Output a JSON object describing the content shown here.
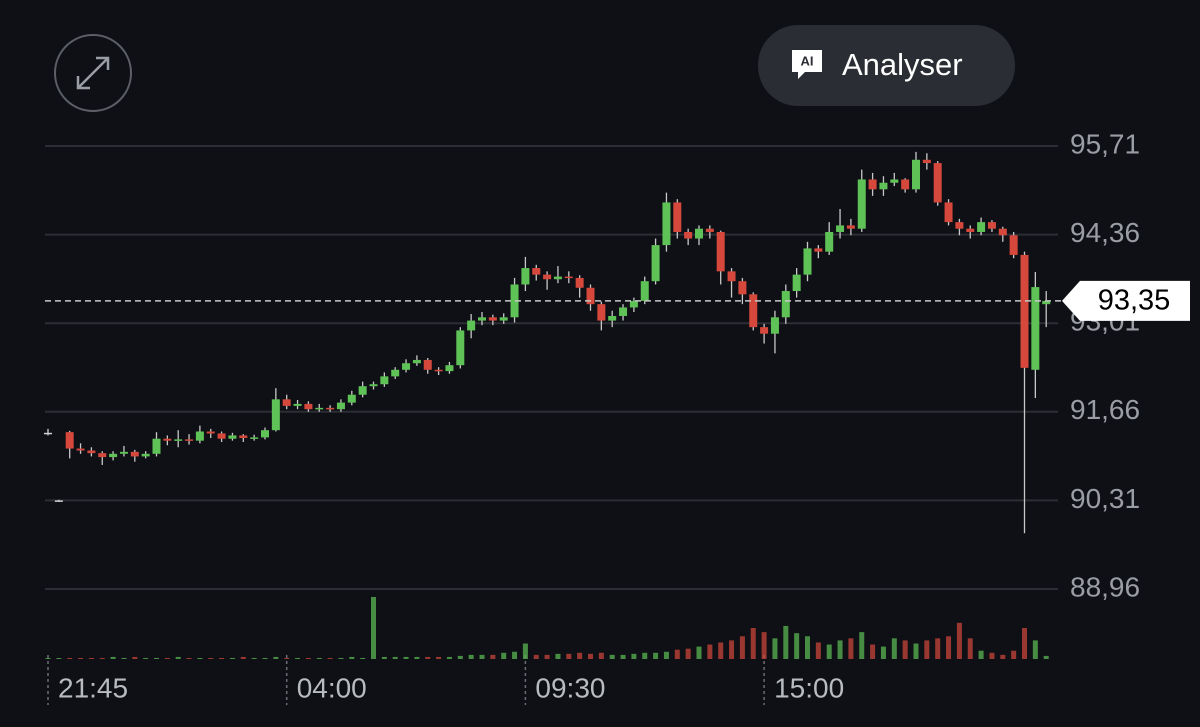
{
  "chart_data": {
    "type": "candlestick",
    "button": {
      "icon_text": "AI",
      "label": "Analyser"
    },
    "ylim": [
      88.96,
      95.71
    ],
    "yticks": [
      {
        "value": 95.71,
        "label": "95,71"
      },
      {
        "value": 94.36,
        "label": "94,36"
      },
      {
        "value": 93.01,
        "label": "93,01"
      },
      {
        "value": 91.66,
        "label": "91,66"
      },
      {
        "value": 90.31,
        "label": "90,31"
      },
      {
        "value": 88.96,
        "label": "88,96"
      }
    ],
    "last_price": {
      "value": 93.35,
      "label": "93,35"
    },
    "up_color": "#5fc257",
    "down_color": "#d6483c",
    "categories": [
      "21:45",
      null,
      null,
      null,
      null,
      null,
      null,
      null,
      null,
      null,
      null,
      null,
      null,
      null,
      null,
      null,
      null,
      null,
      null,
      null,
      null,
      null,
      "04:00",
      null,
      null,
      null,
      null,
      null,
      null,
      null,
      null,
      null,
      null,
      null,
      null,
      null,
      null,
      null,
      null,
      null,
      null,
      null,
      null,
      null,
      "09:30",
      null,
      null,
      null,
      null,
      null,
      null,
      null,
      null,
      null,
      null,
      null,
      null,
      null,
      null,
      null,
      null,
      null,
      null,
      null,
      null,
      null,
      "15:00",
      null,
      null,
      null,
      null,
      null,
      null,
      null,
      null,
      null,
      null,
      null,
      null,
      null,
      null,
      null,
      null,
      null,
      null,
      null,
      null,
      null,
      null,
      null,
      null,
      null,
      null
    ],
    "open": [
      91.33,
      90.3,
      91.35,
      91.1,
      91.07,
      91.03,
      90.97,
      91.02,
      91.05,
      90.98,
      91.02,
      91.25,
      91.22,
      91.24,
      91.22,
      91.36,
      91.33,
      91.25,
      91.3,
      91.26,
      91.27,
      91.38,
      91.85,
      91.75,
      91.78,
      91.7,
      91.72,
      91.7,
      91.8,
      91.92,
      92.05,
      92.08,
      92.2,
      92.3,
      92.4,
      92.45,
      92.3,
      92.28,
      92.37,
      92.9,
      93.05,
      93.1,
      93.05,
      93.1,
      93.6,
      93.85,
      93.75,
      93.68,
      93.72,
      93.7,
      93.55,
      93.3,
      93.05,
      93.12,
      93.25,
      93.35,
      93.65,
      94.2,
      94.85,
      94.4,
      94.3,
      94.45,
      94.4,
      93.8,
      93.65,
      93.45,
      92.95,
      92.85,
      93.1,
      93.5,
      93.75,
      94.15,
      94.1,
      94.4,
      94.5,
      94.45,
      95.2,
      95.05,
      95.15,
      95.2,
      95.05,
      95.5,
      95.45,
      94.85,
      94.55,
      94.45,
      94.4,
      94.55,
      94.45,
      94.35,
      94.05,
      92.3,
      93.3
    ],
    "high": [
      91.4,
      90.32,
      91.37,
      91.18,
      91.12,
      91.06,
      91.06,
      91.14,
      91.08,
      91.06,
      91.35,
      91.3,
      91.38,
      91.32,
      91.45,
      91.4,
      91.36,
      91.34,
      91.32,
      91.31,
      91.42,
      92.02,
      91.92,
      91.84,
      91.82,
      91.78,
      91.76,
      91.85,
      91.98,
      92.12,
      92.12,
      92.26,
      92.34,
      92.46,
      92.52,
      92.48,
      92.34,
      92.42,
      92.95,
      93.15,
      93.18,
      93.14,
      93.16,
      93.7,
      94.02,
      93.9,
      93.8,
      93.88,
      93.8,
      93.74,
      93.6,
      93.34,
      93.2,
      93.3,
      93.4,
      93.72,
      94.3,
      95.0,
      94.9,
      94.45,
      94.5,
      94.5,
      94.42,
      93.85,
      93.7,
      93.48,
      93.0,
      93.2,
      93.6,
      93.85,
      94.25,
      94.2,
      94.55,
      94.75,
      94.6,
      95.35,
      95.3,
      95.25,
      95.3,
      95.22,
      95.62,
      95.6,
      95.48,
      94.9,
      94.6,
      94.5,
      94.62,
      94.58,
      94.48,
      94.4,
      94.1,
      93.79,
      93.5
    ],
    "low": [
      91.3,
      90.3,
      90.95,
      91.02,
      90.98,
      90.85,
      90.92,
      90.98,
      90.9,
      90.95,
      90.98,
      91.15,
      91.12,
      91.16,
      91.18,
      91.26,
      91.2,
      91.22,
      91.2,
      91.22,
      91.24,
      91.36,
      91.7,
      91.7,
      91.66,
      91.66,
      91.66,
      91.66,
      91.76,
      91.88,
      92.0,
      92.04,
      92.16,
      92.26,
      92.36,
      92.24,
      92.22,
      92.24,
      92.32,
      92.78,
      92.98,
      92.98,
      93.0,
      93.02,
      93.5,
      93.66,
      93.52,
      93.62,
      93.62,
      93.4,
      93.2,
      92.9,
      92.95,
      93.05,
      93.18,
      93.3,
      93.6,
      94.1,
      94.3,
      94.2,
      94.2,
      94.3,
      93.6,
      93.4,
      93.3,
      92.9,
      92.7,
      92.55,
      93.0,
      93.4,
      93.65,
      94.0,
      94.05,
      94.3,
      94.35,
      94.4,
      94.95,
      94.95,
      95.1,
      95.0,
      95.0,
      95.35,
      94.8,
      94.5,
      94.35,
      94.3,
      94.35,
      94.4,
      94.25,
      94.0,
      89.81,
      91.87,
      92.95
    ],
    "close": [
      91.34,
      90.31,
      91.1,
      91.07,
      91.03,
      90.97,
      91.02,
      91.05,
      90.98,
      91.02,
      91.25,
      91.22,
      91.24,
      91.22,
      91.36,
      91.33,
      91.25,
      91.3,
      91.26,
      91.27,
      91.38,
      91.85,
      91.75,
      91.78,
      91.7,
      91.72,
      91.7,
      91.8,
      91.92,
      92.05,
      92.08,
      92.2,
      92.3,
      92.4,
      92.45,
      92.3,
      92.28,
      92.37,
      92.9,
      93.05,
      93.1,
      93.05,
      93.1,
      93.6,
      93.85,
      93.75,
      93.68,
      93.72,
      93.7,
      93.55,
      93.3,
      93.05,
      93.12,
      93.25,
      93.35,
      93.65,
      94.2,
      94.85,
      94.4,
      94.3,
      94.45,
      94.4,
      93.8,
      93.65,
      93.45,
      92.95,
      92.85,
      93.1,
      93.5,
      93.75,
      94.15,
      94.1,
      94.4,
      94.5,
      94.45,
      95.2,
      95.05,
      95.15,
      95.2,
      95.05,
      95.5,
      95.45,
      94.85,
      94.55,
      94.45,
      94.4,
      94.55,
      94.45,
      94.35,
      94.05,
      92.33,
      93.56,
      93.35
    ],
    "volume": [
      0,
      0,
      1,
      1,
      1,
      1,
      2,
      1,
      2,
      1,
      1,
      1,
      2,
      1,
      1,
      1,
      1,
      1,
      2,
      1,
      1,
      2,
      1,
      1,
      1,
      1,
      1,
      1,
      2,
      1,
      60,
      2,
      2,
      2,
      2,
      2,
      2,
      2,
      3,
      4,
      4,
      4,
      6,
      7,
      15,
      4,
      4,
      5,
      5,
      6,
      5,
      6,
      4,
      4,
      5,
      6,
      6,
      7,
      9,
      10,
      12,
      14,
      16,
      18,
      22,
      30,
      26,
      20,
      32,
      25,
      22,
      16,
      14,
      18,
      20,
      26,
      14,
      12,
      20,
      18,
      15,
      18,
      20,
      22,
      35,
      20,
      8,
      6,
      4,
      8,
      30,
      18,
      3
    ]
  }
}
